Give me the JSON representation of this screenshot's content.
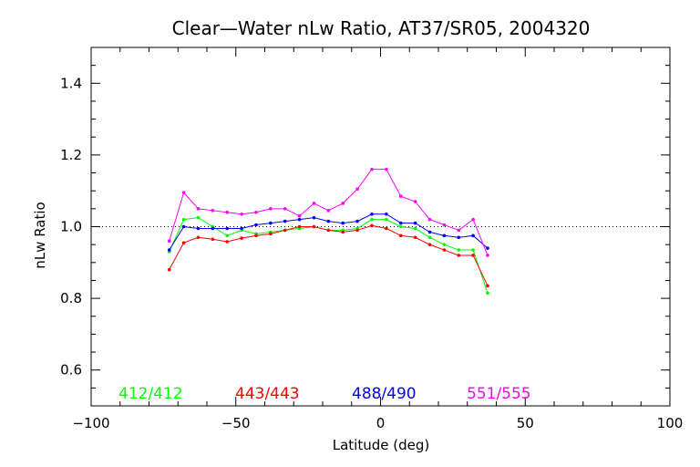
{
  "chart_data": {
    "type": "line",
    "title": "Clear—Water nLw Ratio, AT37/SR05, 2004320",
    "xlabel": "Latitude (deg)",
    "ylabel": "nLw Ratio",
    "xlim": [
      -100,
      100
    ],
    "ylim": [
      0.5,
      1.5
    ],
    "x_ticks": [
      -100,
      -50,
      0,
      50,
      100
    ],
    "y_ticks": [
      0.6,
      0.8,
      1.0,
      1.2,
      1.4
    ],
    "x_tick_labels": [
      "−100",
      "−50",
      "0",
      "50",
      "100"
    ],
    "y_tick_labels": [
      "0.6",
      "0.8",
      "1.0",
      "1.2",
      "1.4"
    ],
    "reference_line": 1.0,
    "grid": false,
    "legend_position": "bottom",
    "x": [
      -73,
      -68,
      -63,
      -58,
      -53,
      -48,
      -43,
      -38,
      -33,
      -28,
      -23,
      -18,
      -13,
      -8,
      -3,
      2,
      7,
      12,
      17,
      22,
      27,
      32,
      37
    ],
    "series": [
      {
        "name": "412/412",
        "color": "#00ff00",
        "values": [
          0.93,
          1.02,
          1.025,
          1.0,
          0.975,
          0.99,
          0.98,
          0.985,
          0.99,
          0.995,
          1.0,
          0.99,
          0.99,
          0.995,
          1.02,
          1.02,
          1.0,
          0.995,
          0.97,
          0.95,
          0.935,
          0.935,
          0.815
        ]
      },
      {
        "name": "443/443",
        "color": "#ff0000",
        "values": [
          0.88,
          0.955,
          0.97,
          0.965,
          0.958,
          0.968,
          0.975,
          0.98,
          0.99,
          1.0,
          1.0,
          0.99,
          0.985,
          0.99,
          1.003,
          0.995,
          0.975,
          0.97,
          0.95,
          0.935,
          0.92,
          0.92,
          0.835
        ]
      },
      {
        "name": "488/490",
        "color": "#0000ff",
        "values": [
          0.935,
          1.0,
          0.995,
          0.995,
          0.995,
          0.995,
          1.005,
          1.01,
          1.015,
          1.02,
          1.025,
          1.015,
          1.01,
          1.015,
          1.035,
          1.035,
          1.01,
          1.01,
          0.985,
          0.975,
          0.97,
          0.975,
          0.94
        ]
      },
      {
        "name": "551/555",
        "color": "#ff00ff",
        "values": [
          0.96,
          1.095,
          1.05,
          1.045,
          1.04,
          1.035,
          1.04,
          1.05,
          1.05,
          1.03,
          1.065,
          1.045,
          1.065,
          1.105,
          1.16,
          1.16,
          1.085,
          1.07,
          1.02,
          1.005,
          0.99,
          1.02,
          0.92
        ]
      }
    ]
  }
}
